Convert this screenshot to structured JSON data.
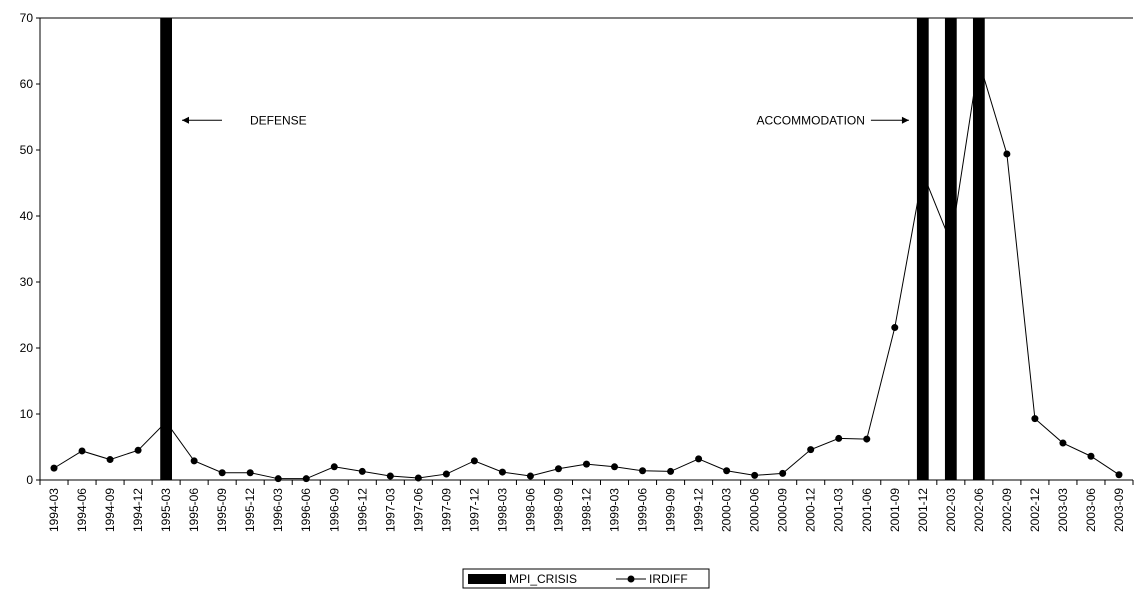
{
  "chart_data": {
    "type": "line",
    "title": "",
    "xlabel": "",
    "ylabel": "",
    "ylim": [
      0,
      70
    ],
    "yticks": [
      0,
      10,
      20,
      30,
      40,
      50,
      60,
      70
    ],
    "categories": [
      "1994-03",
      "1994-06",
      "1994-09",
      "1994-12",
      "1995-03",
      "1995-06",
      "1995-09",
      "1995-12",
      "1996-03",
      "1996-06",
      "1996-09",
      "1996-12",
      "1997-03",
      "1997-06",
      "1997-09",
      "1997-12",
      "1998-03",
      "1998-06",
      "1998-09",
      "1998-12",
      "1999-03",
      "1999-06",
      "1999-09",
      "1999-12",
      "2000-03",
      "2000-06",
      "2000-09",
      "2000-12",
      "2001-03",
      "2001-06",
      "2001-09",
      "2001-12",
      "2002-03",
      "2002-06",
      "2002-09",
      "2002-12",
      "2003-03",
      "2003-06",
      "2003-09"
    ],
    "series": [
      {
        "name": "MPI_CRISIS",
        "kind": "bar",
        "color": "#000000",
        "values": [
          0,
          0,
          0,
          0,
          70,
          0,
          0,
          0,
          0,
          0,
          0,
          0,
          0,
          0,
          0,
          0,
          0,
          0,
          0,
          0,
          0,
          0,
          0,
          0,
          0,
          0,
          0,
          0,
          0,
          0,
          0,
          70,
          70,
          70,
          0,
          0,
          0,
          0,
          0
        ]
      },
      {
        "name": "IRDIFF",
        "kind": "line",
        "color": "#000000",
        "marker": "circle",
        "values": [
          1.8,
          4.4,
          3.1,
          4.5,
          8.8,
          2.9,
          1.1,
          1.1,
          0.2,
          0.2,
          2.0,
          1.3,
          0.6,
          0.3,
          0.9,
          2.9,
          1.2,
          0.6,
          1.7,
          2.4,
          2.0,
          1.4,
          1.3,
          3.2,
          1.4,
          0.7,
          1.0,
          4.6,
          6.3,
          6.2,
          23.1,
          46.5,
          36.0,
          63.5,
          49.4,
          9.3,
          5.6,
          3.6,
          0.8
        ]
      }
    ],
    "annotations": [
      {
        "text": "DEFENSE",
        "category": "1995-03",
        "y": 54.5,
        "arrow": "left"
      },
      {
        "text": "ACCOMMODATION",
        "category": "2001-12",
        "y": 54.5,
        "arrow": "right"
      }
    ],
    "legend": {
      "position": "bottom",
      "entries": [
        "MPI_CRISIS",
        "IRDIFF"
      ]
    },
    "grid": false
  }
}
